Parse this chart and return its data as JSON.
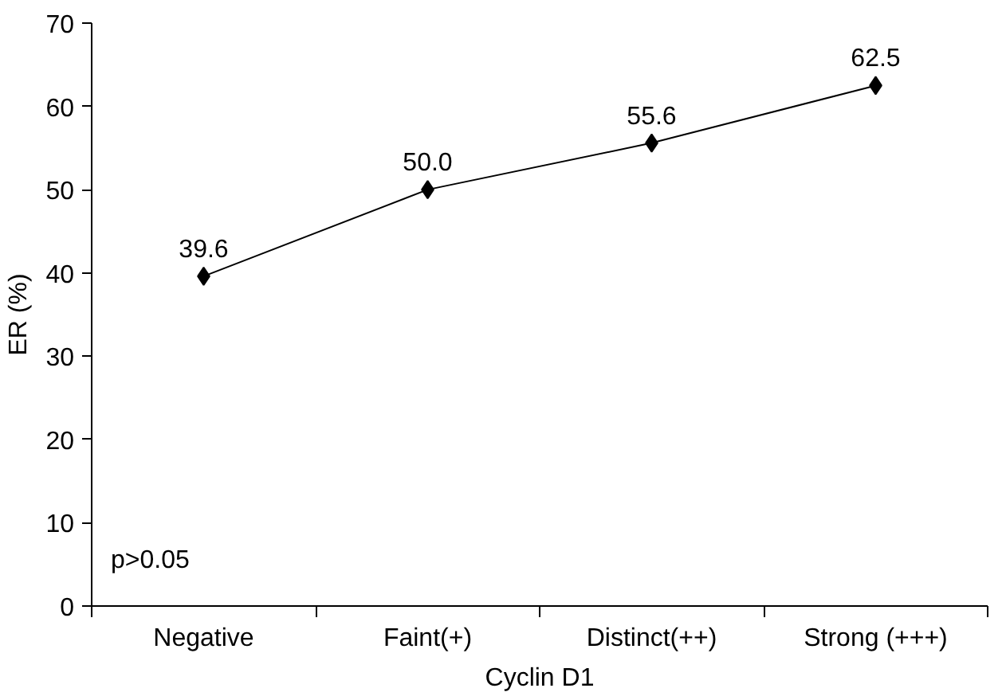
{
  "chart_data": {
    "type": "line",
    "xlabel": "Cyclin D1",
    "ylabel": "ER (%)",
    "categories": [
      "Negative",
      "Faint(+)",
      "Distinct(++)",
      "Strong (+++)"
    ],
    "series": [
      {
        "color": "#000000",
        "values": [
          39.6,
          50.0,
          55.6,
          62.5
        ],
        "value_labels": [
          "39.6",
          "50.0",
          "55.6",
          "62.5"
        ]
      }
    ],
    "ylim": [
      0,
      70
    ],
    "yticks": [
      0,
      10,
      20,
      30,
      40,
      50,
      60,
      70
    ],
    "marker": "diamond",
    "line_style": "solid",
    "grid": false,
    "annotations": [
      "p>0.05"
    ]
  }
}
